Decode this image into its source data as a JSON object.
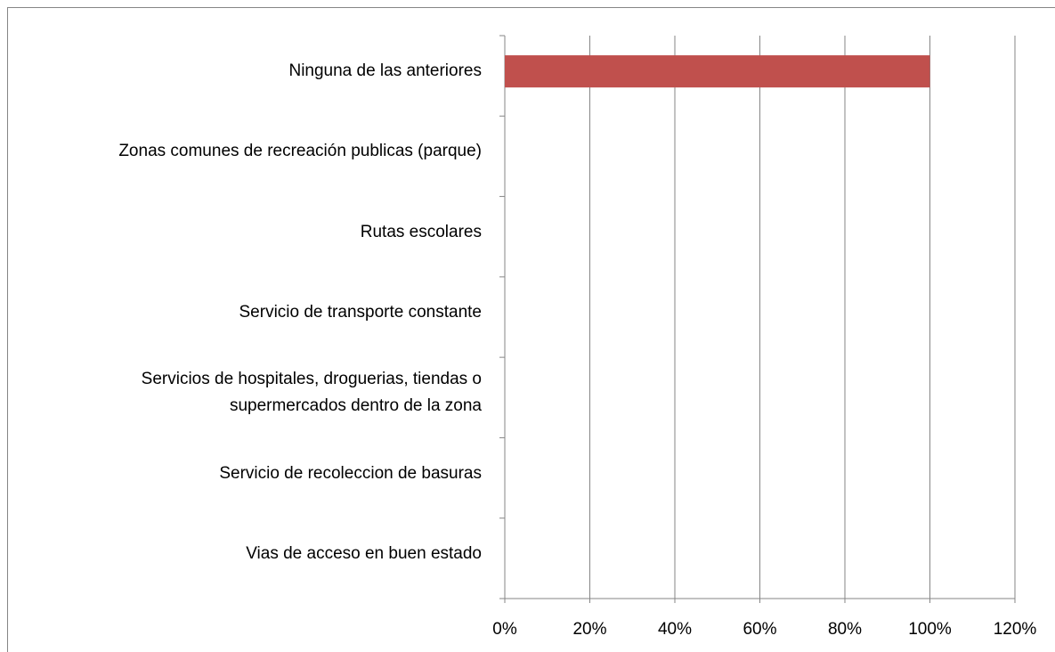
{
  "chart_data": {
    "type": "bar",
    "orientation": "horizontal",
    "categories": [
      "Ninguna de las anteriores",
      "Zonas comunes de recreación publicas (parque)",
      "Rutas escolares",
      "Servicio de transporte constante",
      "Servicios de hospitales, droguerias, tiendas o\nsupermercados dentro de la zona",
      "Servicio de recoleccion de basuras",
      "Vias de acceso en buen estado"
    ],
    "values": [
      100,
      0,
      0,
      0,
      0,
      0,
      0
    ],
    "color": "#c0504d",
    "xlim": [
      0,
      120
    ],
    "xticks": [
      {
        "value": 0,
        "label": "0%"
      },
      {
        "value": 20,
        "label": "20%"
      },
      {
        "value": 40,
        "label": "40%"
      },
      {
        "value": 60,
        "label": "60%"
      },
      {
        "value": 80,
        "label": "80%"
      },
      {
        "value": 100,
        "label": "100%"
      },
      {
        "value": 120,
        "label": "120%"
      }
    ],
    "grid": true
  }
}
